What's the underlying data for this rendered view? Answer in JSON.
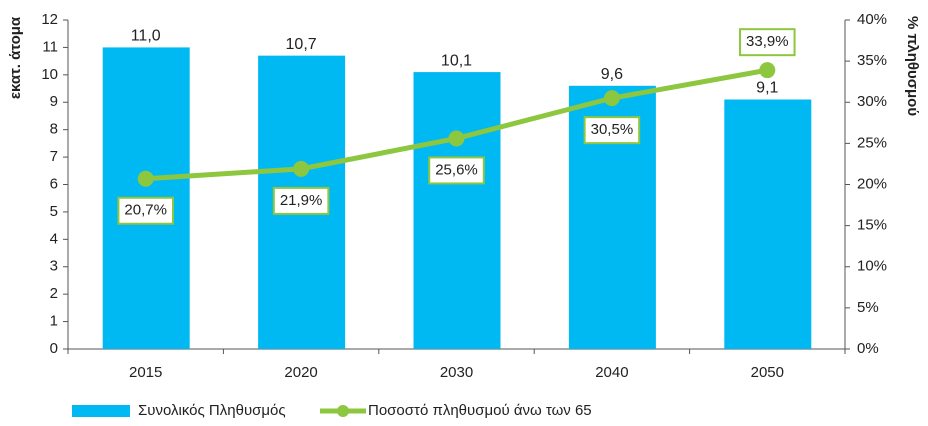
{
  "chart_data": {
    "type": "bar",
    "categories": [
      "2015",
      "2020",
      "2030",
      "2040",
      "2050"
    ],
    "series": [
      {
        "name": "Συνολικός Πληθυσμός",
        "color": "#00b9f2",
        "type": "bar",
        "values": [
          11.0,
          10.7,
          10.1,
          9.6,
          9.1
        ],
        "value_labels": [
          "11,0",
          "10,7",
          "10,1",
          "9,6",
          "9,1"
        ]
      },
      {
        "name": "Ποσοστό πληθυσμού άνω των 65",
        "color": "#8dc63f",
        "type": "line",
        "axis": "y2",
        "values": [
          20.7,
          21.9,
          25.6,
          30.5,
          33.9
        ],
        "value_labels": [
          "20,7%",
          "21,9%",
          "25,6%",
          "30,5%",
          "33,9%"
        ]
      }
    ],
    "y_label": "εκατ. άτομα",
    "y2_label": "% πληθυσμού",
    "ylim": [
      0,
      12
    ],
    "yticks": [
      0,
      1,
      2,
      3,
      4,
      5,
      6,
      7,
      8,
      9,
      10,
      11,
      12
    ],
    "y2lim": [
      0,
      40
    ],
    "y2ticks": [
      {
        "value": 0,
        "label": "0%"
      },
      {
        "value": 5,
        "label": "5%"
      },
      {
        "value": 10,
        "label": "10%"
      },
      {
        "value": 15,
        "label": "15%"
      },
      {
        "value": 20,
        "label": "20%"
      },
      {
        "value": 25,
        "label": "25%"
      },
      {
        "value": 30,
        "label": "30%"
      },
      {
        "value": 35,
        "label": "35%"
      },
      {
        "value": 40,
        "label": "40%"
      }
    ],
    "legend": "bottom"
  }
}
